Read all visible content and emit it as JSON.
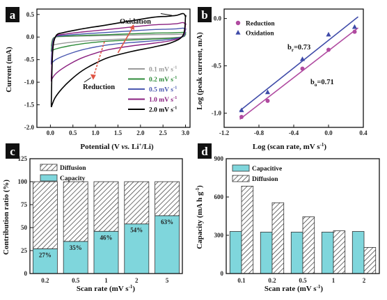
{
  "panels": [
    {
      "label": "a",
      "chart_data": {
        "type": "line",
        "xlabel": "Potential (V vs. Li+/Li)",
        "ylabel": "Current (mA)",
        "xlim": [
          -0.3,
          3.1
        ],
        "ylim": [
          -2.0,
          0.62
        ],
        "xticks": [
          0.0,
          0.5,
          1.0,
          1.5,
          2.0,
          2.5,
          3.0
        ],
        "yticks": [
          -2.0,
          -1.5,
          -1.0,
          -0.5,
          0.0,
          0.5
        ],
        "legend_position": "lower-right",
        "annotations": [
          "Oxidation",
          "Reduction"
        ],
        "series": [
          {
            "name": "0.1 mV s-1",
            "label_text": "0.1",
            "color": "#9a9a9a",
            "v": 0.1
          },
          {
            "name": "0.2 mV s-1",
            "label_text": "0.2",
            "color": "#2e8b3a",
            "v": 0.2
          },
          {
            "name": "0.5 mV s-1",
            "label_text": "0.5",
            "color": "#4a58b0",
            "v": 0.5
          },
          {
            "name": "1.0 mV s-1",
            "label_text": "1.0",
            "color": "#8a1f7f",
            "v": 1.0
          },
          {
            "name": "2.0 mV s-1",
            "label_text": "2.0",
            "color": "#000000",
            "v": 2.0
          }
        ],
        "legend_unit": "mV s"
      }
    },
    {
      "label": "b",
      "chart_data": {
        "type": "scatter",
        "xlabel": "Log (scan rate, mV s-1)",
        "ylabel": "Log (peak current, mA)",
        "xlim": [
          -1.2,
          0.4
        ],
        "ylim": [
          -1.15,
          0.1
        ],
        "xticks": [
          -1.2,
          -0.8,
          -0.4,
          0.0,
          0.4
        ],
        "yticks": [
          -1.0,
          -0.5,
          0.0
        ],
        "legend_position": "top-left",
        "series": [
          {
            "name": "Reduction",
            "marker": "circle",
            "color": "#b04aa0",
            "x": [
              -1.0,
              -0.7,
              -0.3,
              0.0,
              0.3
            ],
            "y": [
              -1.04,
              -0.87,
              -0.53,
              -0.33,
              -0.14
            ]
          },
          {
            "name": "Oxidation",
            "marker": "triangle",
            "color": "#3e4aa8",
            "x": [
              -1.0,
              -0.7,
              -0.3,
              0.0,
              0.3
            ],
            "y": [
              -0.97,
              -0.78,
              -0.43,
              -0.17,
              -0.09
            ]
          }
        ],
        "fits": [
          {
            "series": "Reduction",
            "color": "#b04aa0",
            "b_label": "bo=0.71",
            "b_main": "b",
            "b_sub": "o",
            "b_value": "=0.71",
            "slope": 0.71,
            "intercept": -0.34
          },
          {
            "series": "Oxidation",
            "color": "#3e4aa8",
            "b_label": "br=0.73",
            "b_main": "b",
            "b_sub": "r",
            "b_value": "=0.73",
            "slope": 0.73,
            "intercept": -0.23
          }
        ]
      }
    },
    {
      "label": "c",
      "chart_data": {
        "type": "bar",
        "stacked": true,
        "xlabel": "Scan rate (mV s-1)",
        "ylabel": "Contribution ratio (%)",
        "ylim": [
          0,
          125
        ],
        "yticks": [
          0,
          25,
          50,
          75,
          100,
          125
        ],
        "legend_position": "top-left",
        "categories": [
          "0.2",
          "0.5",
          "1",
          "2",
          "5"
        ],
        "series": [
          {
            "name": "Capacity",
            "color": "#7fd6dc",
            "values": [
              27,
              35,
              46,
              54,
              63
            ]
          },
          {
            "name": "Diffusion",
            "pattern": "hatched",
            "values": [
              73,
              65,
              54,
              46,
              37
            ]
          }
        ],
        "data_labels": [
          "27%",
          "35%",
          "46%",
          "54%",
          "63%"
        ]
      }
    },
    {
      "label": "d",
      "chart_data": {
        "type": "bar",
        "grouped": true,
        "xlabel": "Scan rate (mV s-1)",
        "ylabel": "Capacity (mA h g-1)",
        "ylim": [
          0,
          900
        ],
        "yticks": [
          0,
          300,
          600,
          900
        ],
        "legend_position": "top-left",
        "categories": [
          "0.1",
          "0.2",
          "0.5",
          "1",
          "2"
        ],
        "series": [
          {
            "name": "Capacitive",
            "color": "#7fd6dc",
            "values": [
              330,
              325,
              325,
              325,
              330
            ]
          },
          {
            "name": "Diffusion",
            "pattern": "hatched",
            "values": [
              685,
              555,
              445,
              335,
              205
            ]
          }
        ]
      }
    }
  ]
}
